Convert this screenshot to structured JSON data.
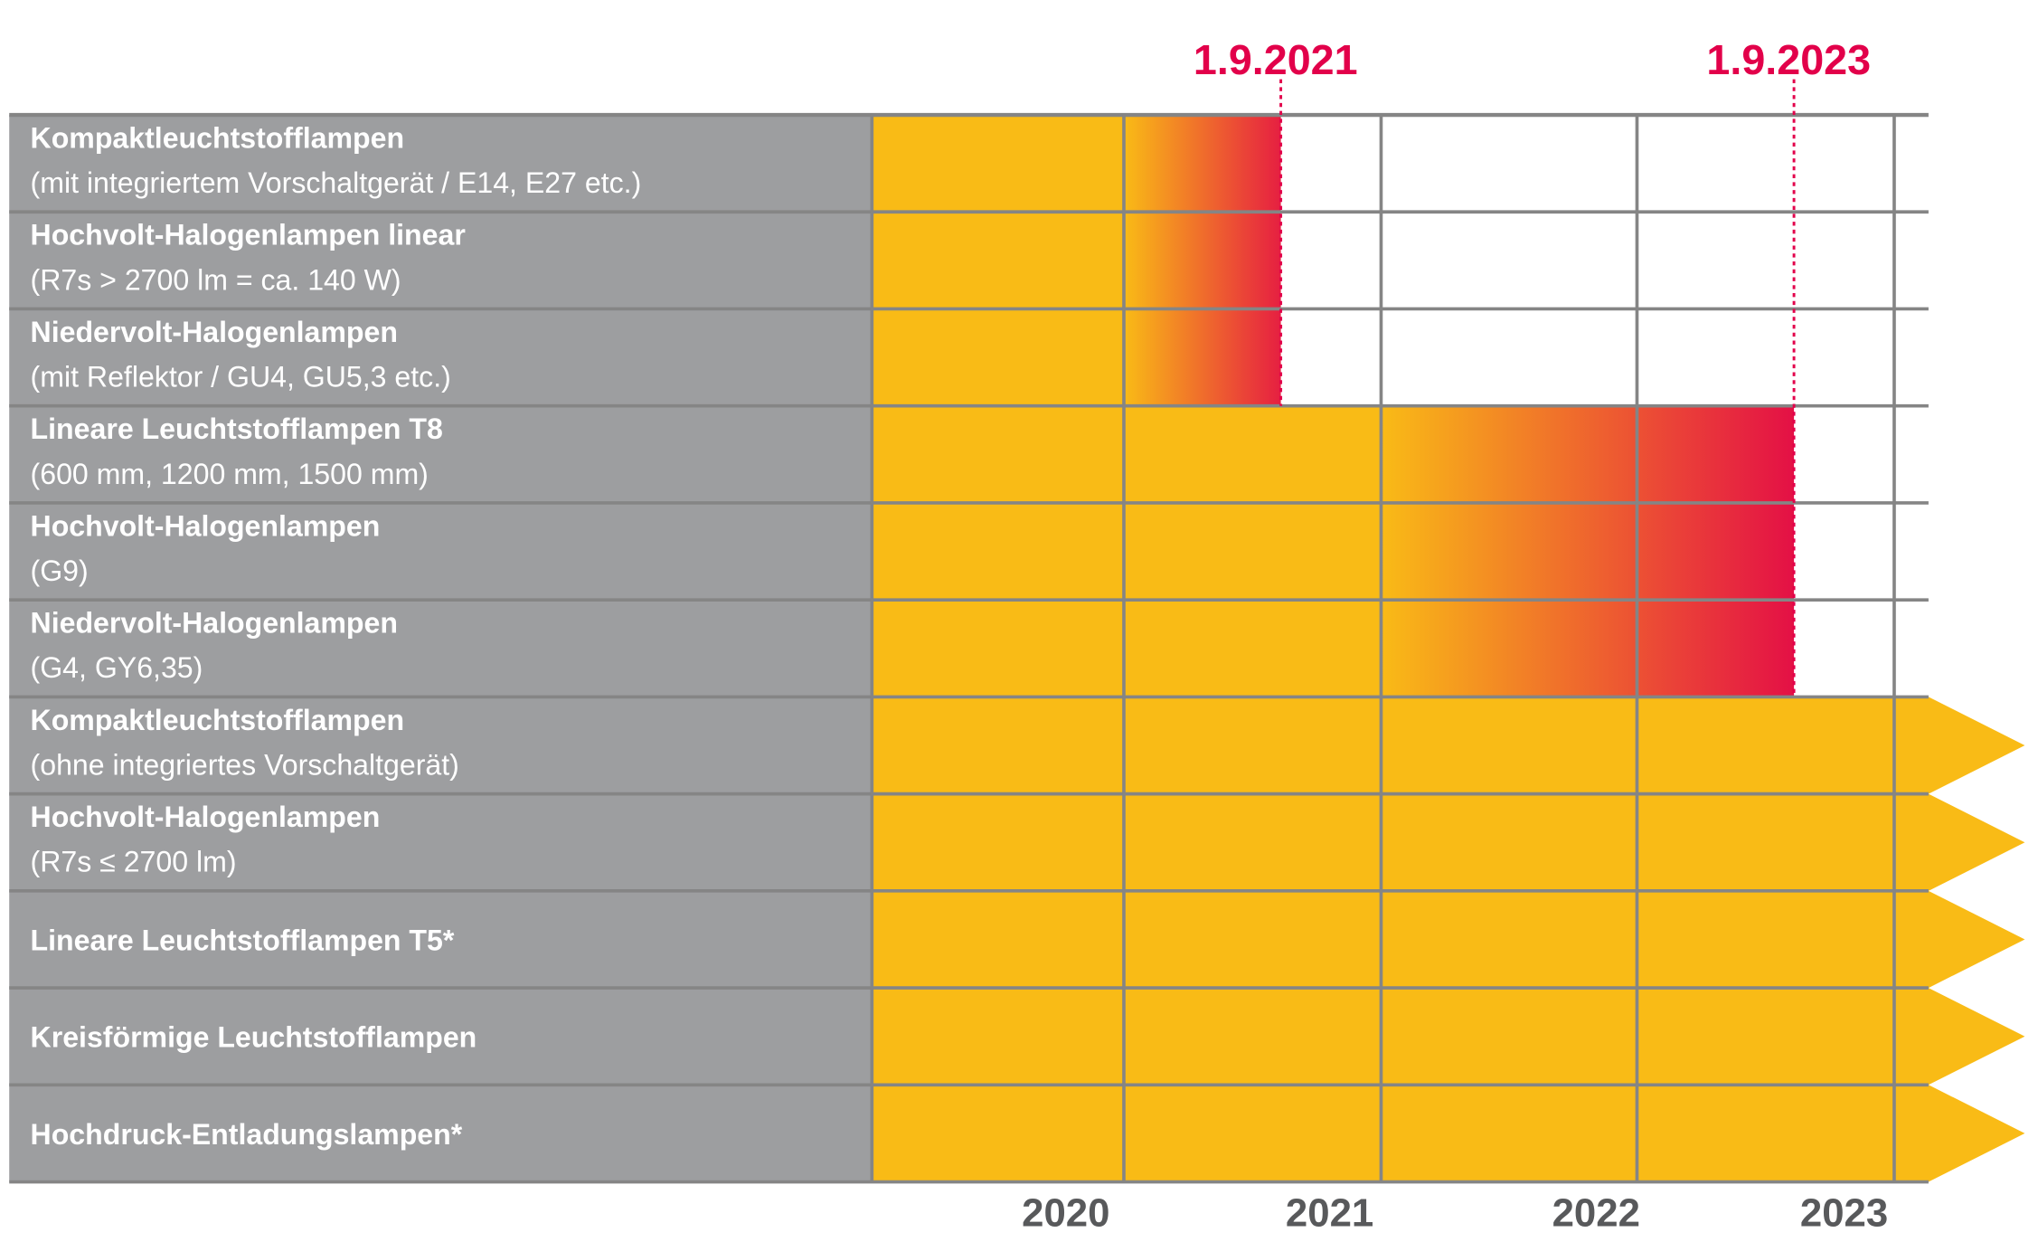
{
  "chart_data": {
    "type": "timeline",
    "colors": {
      "label_bg": "#9d9ea0",
      "bar": "#f9bb16",
      "phase_out": "#e2004a",
      "grid": "#858585",
      "year_text": "#58595b"
    },
    "x_ticks": [
      "2020",
      "2021",
      "2022",
      "2023"
    ],
    "markers": [
      {
        "label": "1.9.2021",
        "date": "2021-09-01"
      },
      {
        "label": "1.9.2023",
        "date": "2023-09-01"
      }
    ],
    "rows": [
      {
        "title": "Kompaktleuchtstofflampen",
        "subtitle": "(mit integriertem Vorschaltgerät / E14, E27 etc.)",
        "end": "2021-09-01"
      },
      {
        "title": "Hochvolt-Halogenlampen linear",
        "subtitle": "(R7s > 2700 lm = ca. 140 W)",
        "end": "2021-09-01"
      },
      {
        "title": "Niedervolt-Halogenlampen",
        "subtitle": "(mit Reflektor / GU4, GU5,3 etc.)",
        "end": "2021-09-01"
      },
      {
        "title": "Lineare Leuchtstofflampen T8",
        "subtitle": "(600 mm, 1200 mm, 1500 mm)",
        "end": "2023-09-01"
      },
      {
        "title": "Hochvolt-Halogenlampen",
        "subtitle": "(G9)",
        "end": "2023-09-01"
      },
      {
        "title": "Niedervolt-Halogenlampen",
        "subtitle": "(G4, GY6,35)",
        "end": "2023-09-01"
      },
      {
        "title": "Kompaktleuchtstofflampen",
        "subtitle": "(ohne integriertes Vorschaltgerät)",
        "end": "ongoing"
      },
      {
        "title": "Hochvolt-Halogenlampen",
        "subtitle": "(R7s ≤ 2700 lm)",
        "end": "ongoing"
      },
      {
        "title": "Lineare Leuchtstofflampen T5*",
        "subtitle": "",
        "end": "ongoing"
      },
      {
        "title": "Kreisförmige Leuchtstofflampen",
        "subtitle": "",
        "end": "ongoing"
      },
      {
        "title": "Hochdruck-Entladungslampen*",
        "subtitle": "",
        "end": "ongoing"
      }
    ]
  }
}
